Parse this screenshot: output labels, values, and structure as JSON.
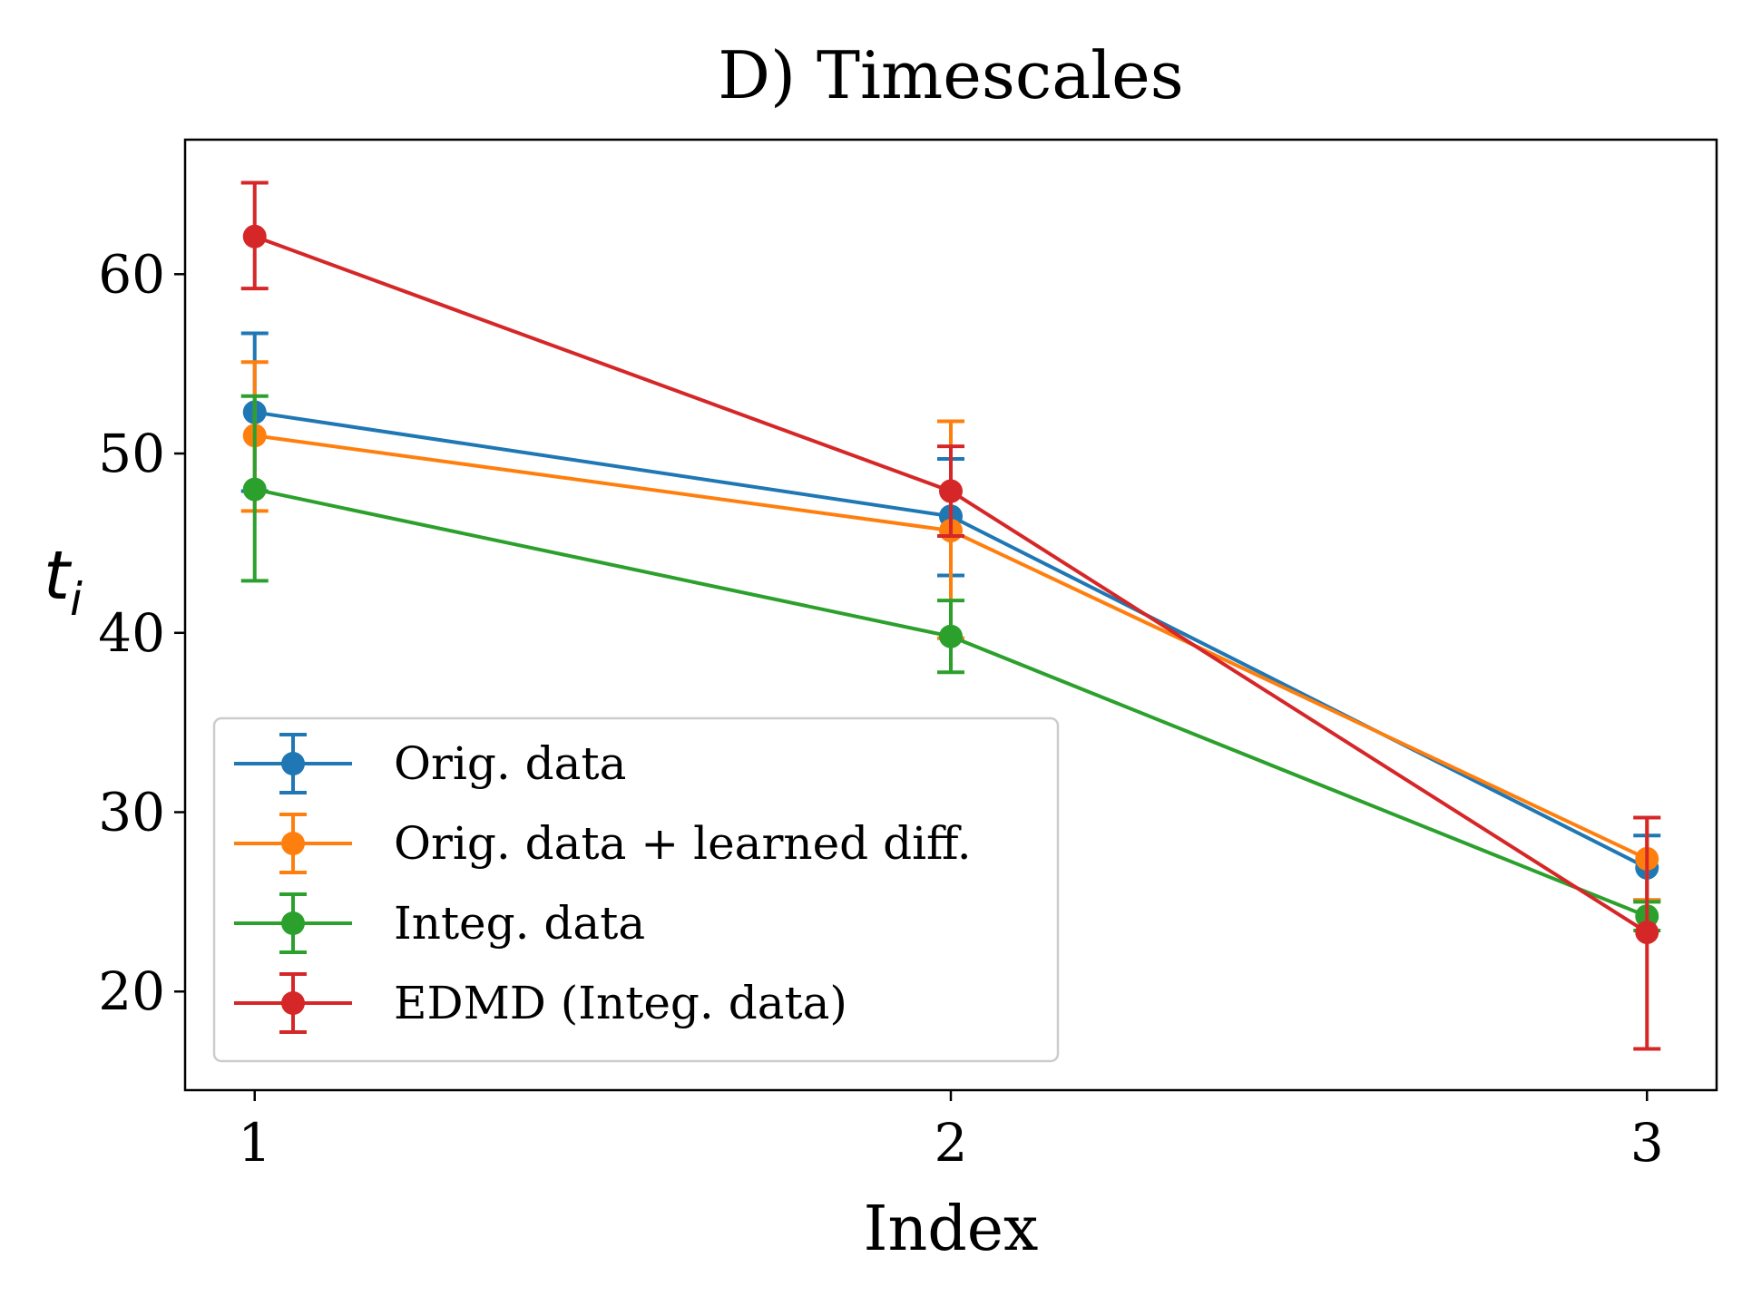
{
  "chart_data": {
    "type": "line",
    "title": "D) Timescales",
    "xlabel": "Index",
    "ylabel": "t",
    "ylabel_subscript": "i",
    "x": [
      1,
      2,
      3
    ],
    "xticks": [
      1,
      2,
      3
    ],
    "xlim": [
      0.9,
      3.1
    ],
    "yticks": [
      20,
      30,
      40,
      50,
      60
    ],
    "ylim": [
      14.5,
      67.5
    ],
    "grid": false,
    "legend_position": "lower-left",
    "series": [
      {
        "name": "Orig. data",
        "color": "#1f77b4",
        "values": [
          52.3,
          46.5,
          26.9
        ],
        "err_low": [
          47.9,
          43.2,
          25.1
        ],
        "err_high": [
          56.7,
          49.7,
          28.7
        ]
      },
      {
        "name": "Orig. data + learned diff.",
        "color": "#ff7f0e",
        "values": [
          51.0,
          45.7,
          27.4
        ],
        "err_low": [
          46.8,
          39.7,
          25.1
        ],
        "err_high": [
          55.1,
          51.8,
          29.7
        ]
      },
      {
        "name": "Integ. data",
        "color": "#2ca02c",
        "values": [
          48.0,
          39.8,
          24.2
        ],
        "err_low": [
          42.9,
          37.8,
          23.4
        ],
        "err_high": [
          53.2,
          41.8,
          25.0
        ]
      },
      {
        "name": "EDMD (Integ. data)",
        "color": "#d62728",
        "values": [
          62.1,
          47.9,
          23.3
        ],
        "err_low": [
          59.2,
          45.4,
          16.8
        ],
        "err_high": [
          65.1,
          50.4,
          29.7
        ]
      }
    ]
  }
}
